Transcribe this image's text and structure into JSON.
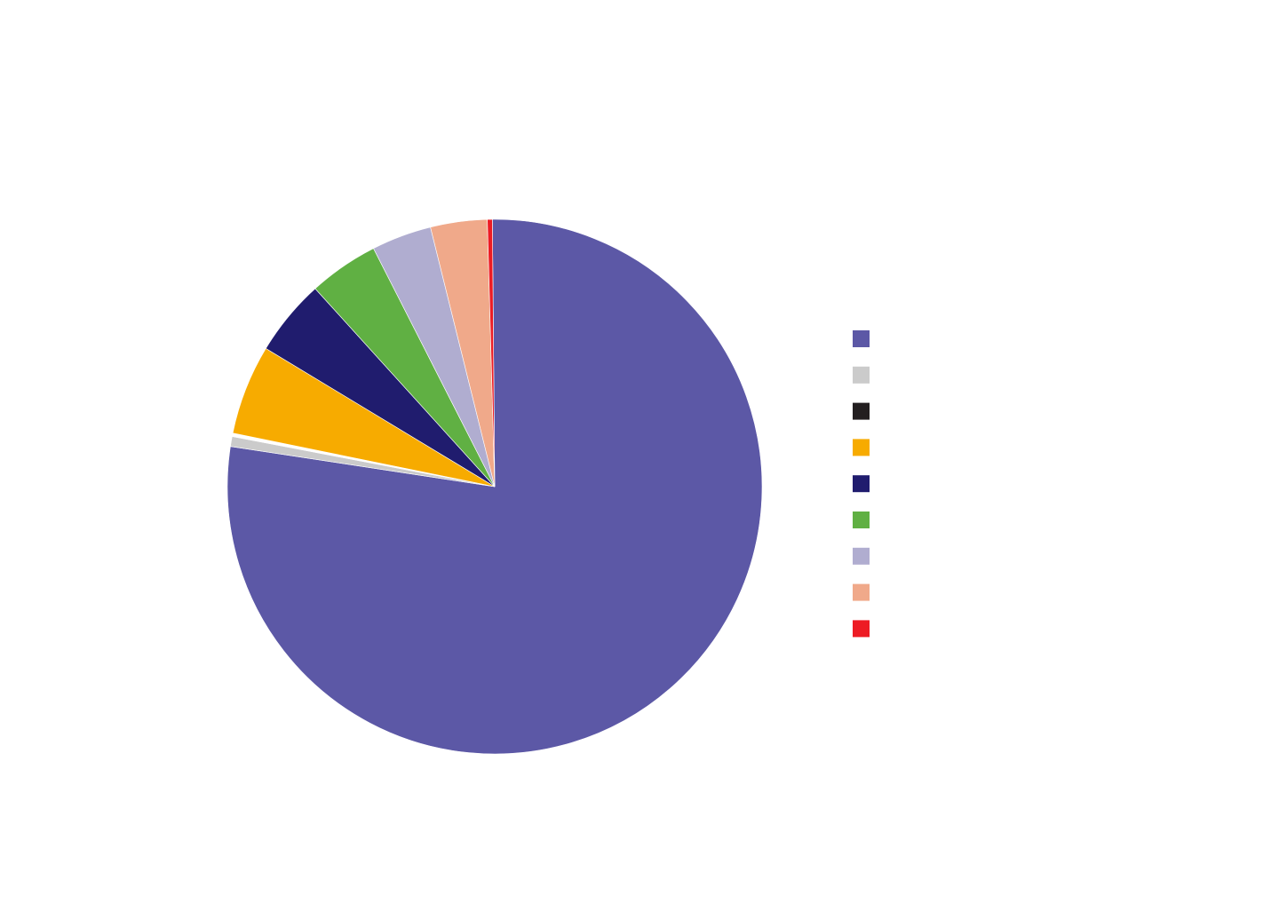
{
  "chart_data": {
    "type": "pie",
    "title": "",
    "start_angle_deg": -0.5,
    "direction": "clockwise",
    "legend_position": "right",
    "slices": [
      {
        "value": 77.0,
        "color": "#5c58a6"
      },
      {
        "value": 0.6,
        "color": "#cbcbcb"
      },
      {
        "value": 0.2,
        "color": "#ffffff"
      },
      {
        "value": 5.4,
        "color": "#f7ab00"
      },
      {
        "value": 4.6,
        "color": "#201c6e"
      },
      {
        "value": 4.2,
        "color": "#60b043"
      },
      {
        "value": 3.6,
        "color": "#b0add0"
      },
      {
        "value": 3.4,
        "color": "#f0a98a"
      },
      {
        "value": 0.3,
        "color": "#ed1c24"
      }
    ],
    "legend": [
      {
        "color": "#5c58a6"
      },
      {
        "color": "#cbcbcb"
      },
      {
        "color": "#231f20"
      },
      {
        "color": "#f7ab00"
      },
      {
        "color": "#201c6e"
      },
      {
        "color": "#60b043"
      },
      {
        "color": "#b0add0"
      },
      {
        "color": "#f0a98a"
      },
      {
        "color": "#ed1c24"
      }
    ]
  }
}
